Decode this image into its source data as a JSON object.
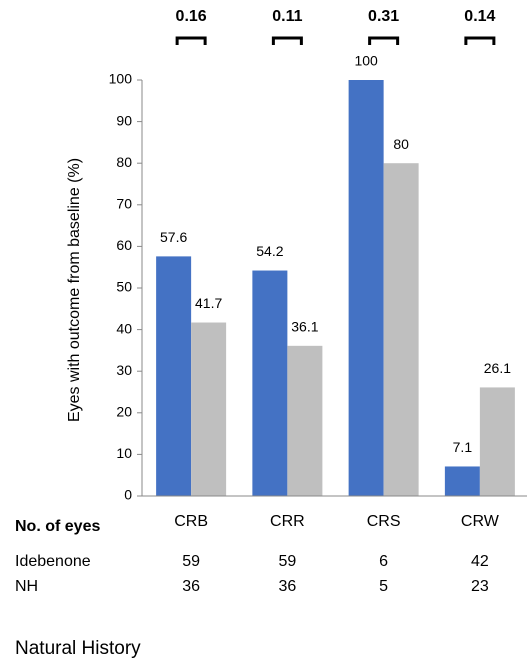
{
  "chart_data": {
    "type": "bar",
    "y_label": "Eyes with outcome from baseline (%)",
    "categories": [
      "CRB",
      "CRR",
      "CRS",
      "CRW"
    ],
    "series": [
      {
        "color": "#4472c4",
        "values": [
          57.6,
          54.2,
          100,
          7.1
        ]
      },
      {
        "color": "#bfbfbf",
        "values": [
          41.7,
          36.1,
          80,
          26.1
        ]
      }
    ],
    "p_values": [
      0.16,
      0.11,
      0.31,
      0.14
    ],
    "ylim": [
      0,
      100
    ],
    "yticks": [
      0,
      10,
      20,
      30,
      40,
      50,
      60,
      70,
      80,
      90,
      100
    ]
  },
  "table": {
    "header": "No. of eyes",
    "rows": [
      {
        "label": "Idebenone",
        "values": [
          59,
          59,
          6,
          42
        ]
      },
      {
        "label": "NH",
        "values": [
          36,
          36,
          5,
          23
        ]
      }
    ]
  },
  "footer": "Natural History"
}
